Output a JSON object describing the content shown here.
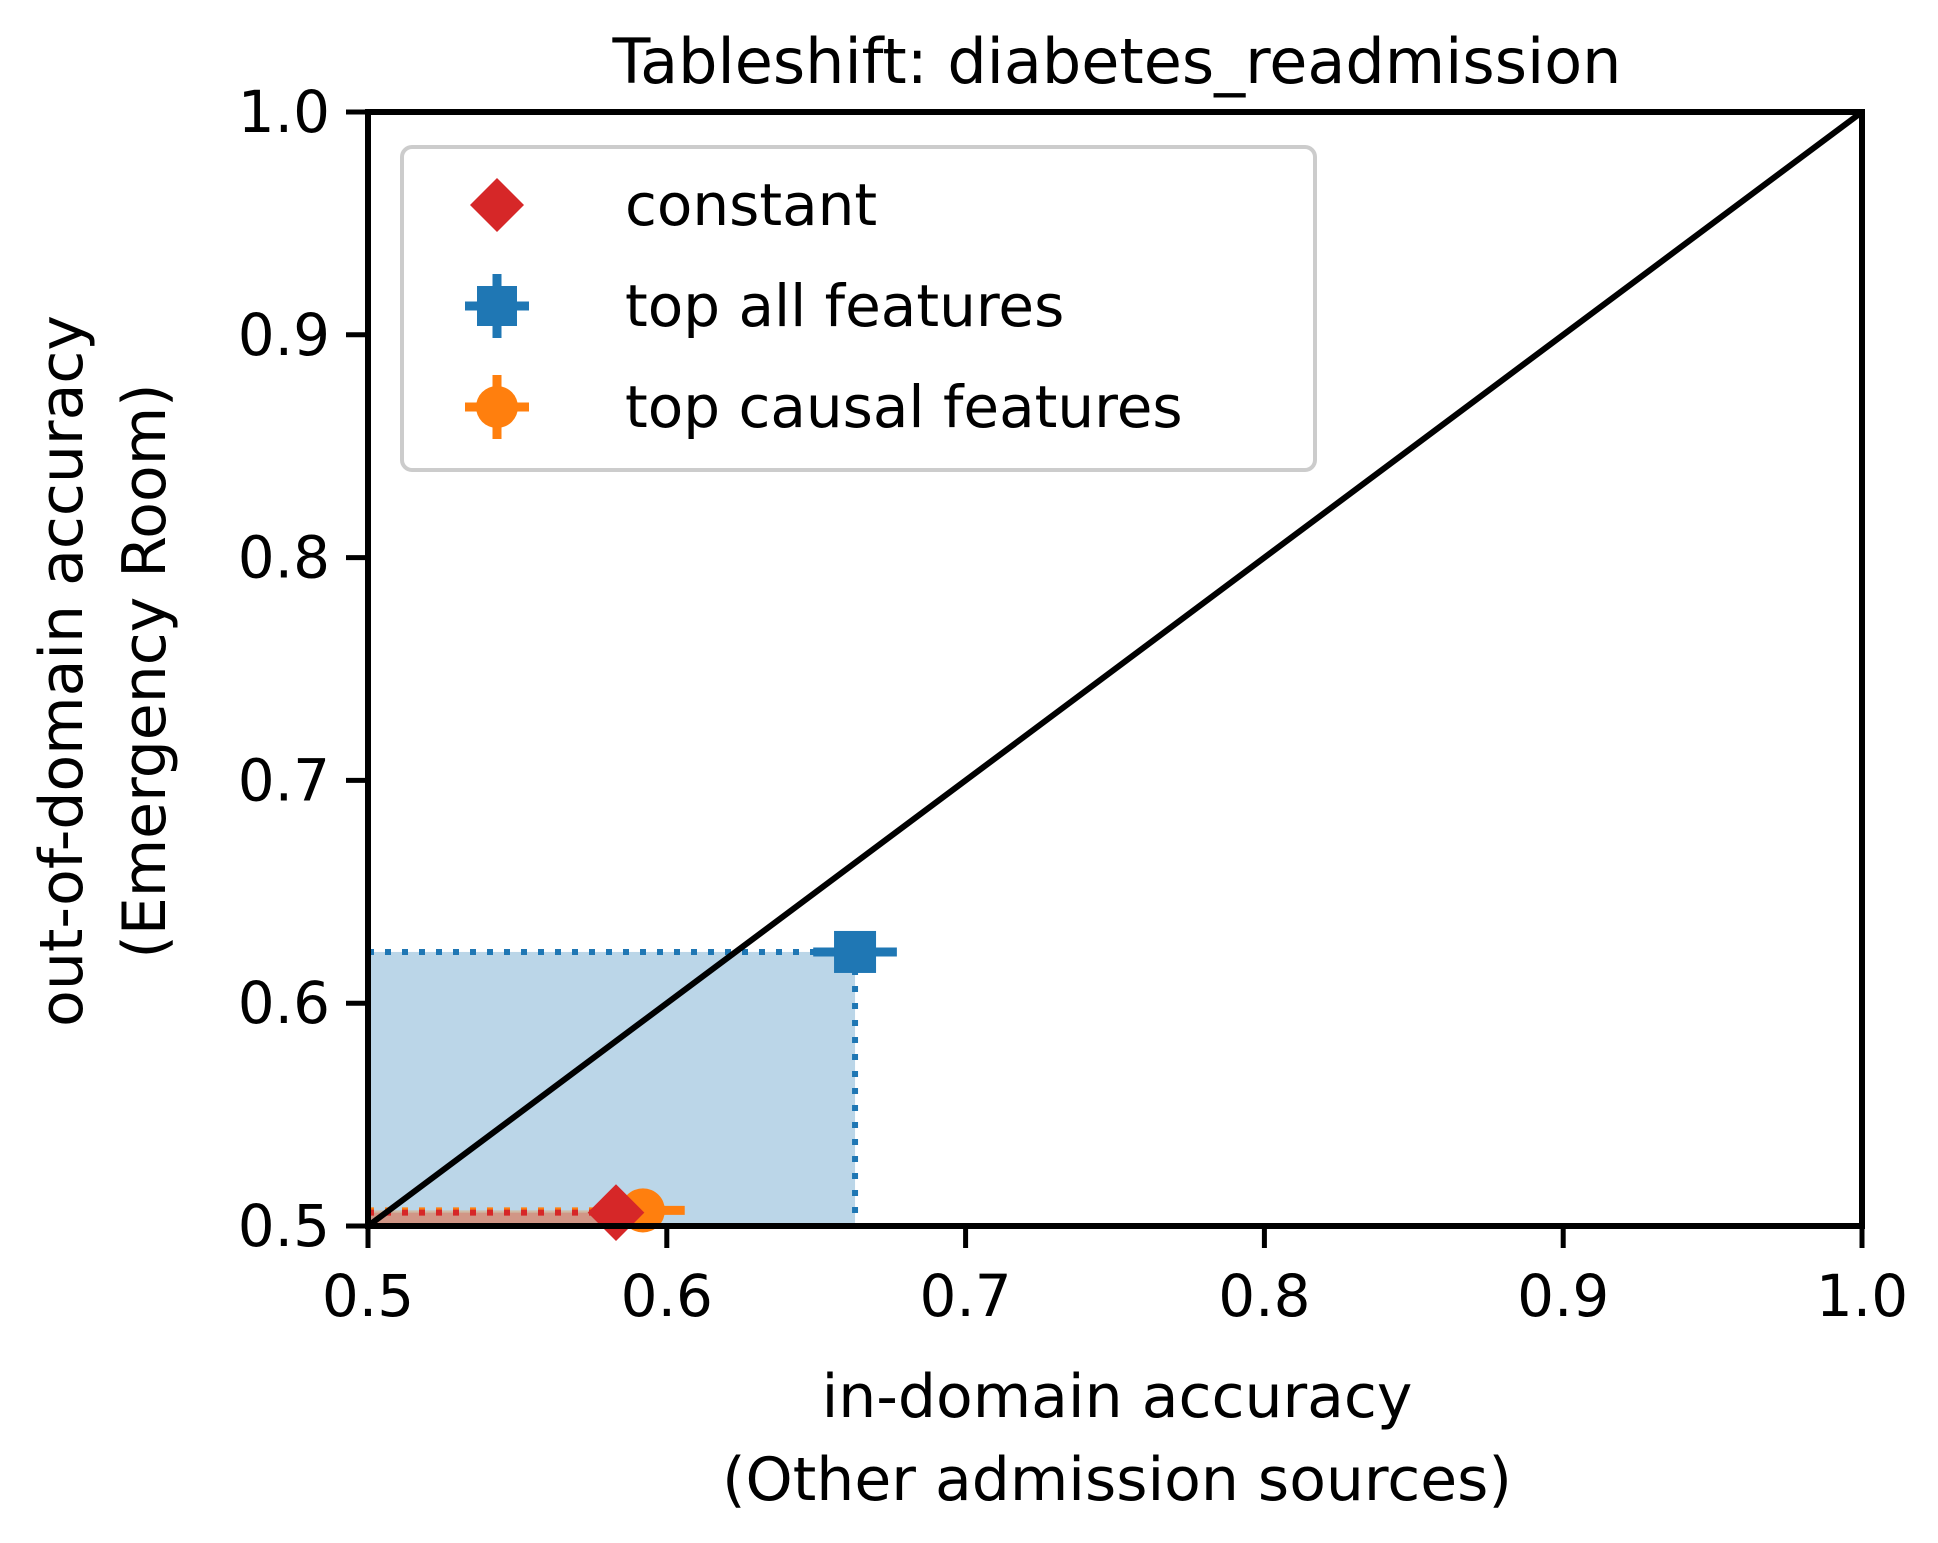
{
  "chart_data": {
    "type": "scatter",
    "title": "Tableshift: diabetes_readmission",
    "xlabel": [
      "in-domain accuracy",
      "(Other admission sources)"
    ],
    "ylabel": [
      "out-of-domain accuracy",
      "(Emergency Room)"
    ],
    "xlim": [
      0.5,
      1.0
    ],
    "ylim": [
      0.5,
      1.0
    ],
    "x_ticks": [
      "0.5",
      "0.6",
      "0.7",
      "0.8",
      "0.9",
      "1.0"
    ],
    "y_ticks": [
      "0.5",
      "0.6",
      "0.7",
      "0.8",
      "0.9",
      "1.0"
    ],
    "grid": false,
    "legend_position": "upper-left",
    "diagonal": {
      "from": [
        0.5,
        0.5
      ],
      "to": [
        1.0,
        1.0
      ],
      "color": "#000000"
    },
    "series": [
      {
        "name": "constant",
        "marker": "diamond",
        "color": "#d62728",
        "points": [
          {
            "x": 0.583,
            "y": 0.506,
            "xerr": 0.0,
            "yerr": 0.0
          }
        ]
      },
      {
        "name": "top all features",
        "marker": "square",
        "color": "#1f77b4",
        "points": [
          {
            "x": 0.663,
            "y": 0.623,
            "xerr": 0.014,
            "yerr": 0.002
          }
        ]
      },
      {
        "name": "top causal features",
        "marker": "circle",
        "color": "#ff7f0e",
        "points": [
          {
            "x": 0.592,
            "y": 0.507,
            "xerr": 0.014,
            "yerr": 0.002
          }
        ]
      }
    ]
  }
}
